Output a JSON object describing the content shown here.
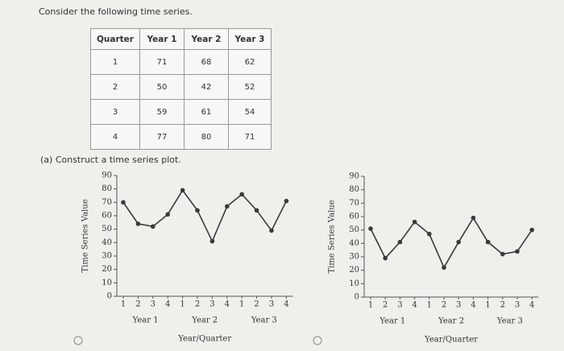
{
  "question": {
    "prompt": "Consider the following time series.",
    "part_a": "(a) Construct a time series plot."
  },
  "table": {
    "header": [
      "Quarter",
      "Year 1",
      "Year 2",
      "Year 3"
    ],
    "rows": [
      [
        1,
        71,
        68,
        62
      ],
      [
        2,
        50,
        42,
        52
      ],
      [
        3,
        59,
        61,
        54
      ],
      [
        4,
        77,
        80,
        71
      ]
    ]
  },
  "chart_data": [
    {
      "type": "line",
      "color": "#3a3a3a",
      "categories": [
        "1",
        "2",
        "3",
        "4",
        "1",
        "2",
        "3",
        "4",
        "1",
        "2",
        "3",
        "4"
      ],
      "groups": [
        "Year 1",
        "Year 2",
        "Year 3"
      ],
      "values": [
        70,
        54,
        52,
        61,
        79,
        64,
        41,
        67,
        76,
        64,
        49,
        71
      ],
      "xlabel": "Year/Quarter",
      "ylabel": "Time Series Value",
      "ylim": [
        0,
        90
      ],
      "yticks": [
        0,
        10,
        20,
        30,
        40,
        50,
        60,
        70,
        80,
        90
      ]
    },
    {
      "type": "line",
      "color": "#3a3a3a",
      "categories": [
        "1",
        "2",
        "3",
        "4",
        "1",
        "2",
        "3",
        "4",
        "1",
        "2",
        "3",
        "4"
      ],
      "groups": [
        "Year 1",
        "Year 2",
        "Year 3"
      ],
      "values": [
        51,
        29,
        41,
        56,
        47,
        22,
        41,
        59,
        41,
        32,
        34,
        50
      ],
      "xlabel": "Year/Quarter",
      "ylabel": "Time Series Value",
      "ylim": [
        0,
        90
      ],
      "yticks": [
        0,
        10,
        20,
        30,
        40,
        50,
        60,
        70,
        80,
        90
      ]
    }
  ]
}
